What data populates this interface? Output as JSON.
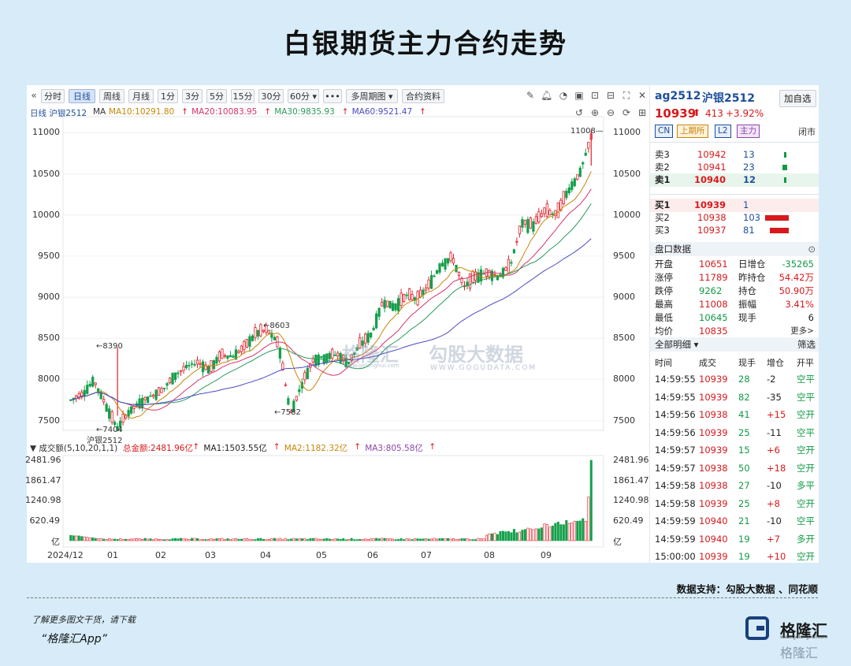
{
  "title": "白银期货主力合约走势",
  "toolbar": {
    "buttons": [
      "分时",
      "日线",
      "周线",
      "月线",
      "1分",
      "3分",
      "5分",
      "15分",
      "30分",
      "60分 ▾",
      "•••",
      "多周期图 ▾",
      "合约资料"
    ],
    "active_index": 1
  },
  "chart_header": {
    "label": "日线 沪银2512",
    "ma_legend": [
      {
        "text": "MA",
        "color": "#333333"
      },
      {
        "text": "MA10:10291.80",
        "color": "#c8860a"
      },
      {
        "text": "MA20:10083.95",
        "color": "#d6336c"
      },
      {
        "text": "MA30:9835.93",
        "color": "#2b9a5a"
      },
      {
        "text": "MA60:9521.47",
        "color": "#4b4bc4"
      }
    ]
  },
  "vol_header": {
    "label": "成交额(5,10,20,1,1)",
    "items": [
      {
        "text": "总金额:2481.96亿",
        "color": "#d7191c"
      },
      {
        "text": "MA1:1503.55亿",
        "color": "#222222"
      },
      {
        "text": "MA2:1182.32亿",
        "color": "#c8860a"
      },
      {
        "text": "MA3:805.58亿",
        "color": "#8e44ad"
      }
    ]
  },
  "price_axis": [
    "11000",
    "10500",
    "10000",
    "9500",
    "9000",
    "8500",
    "8000",
    "7500"
  ],
  "vol_axis": [
    "2481.96",
    "1861.47",
    "1240.98",
    "620.49",
    "亿"
  ],
  "x_axis": [
    "2024/12",
    "01",
    "02",
    "03",
    "04",
    "05",
    "06",
    "07",
    "08",
    "09"
  ],
  "annotations": {
    "high": "11008",
    "p8390": "8390",
    "p8603": "8603",
    "p7582": "7582",
    "p7404": "7404",
    "contract_tag": "沪银2512"
  },
  "watermark": {
    "brand": "格隆汇",
    "brand_sub": "www.gelonghui.com",
    "partner": "勾股大数据",
    "partner_sub": "WWW.GOGUDATA.COM"
  },
  "quote": {
    "code": "ag2512",
    "name": "沪银2512",
    "add_button": "加自选",
    "price": "10939",
    "arrow": "⬆",
    "change": "413",
    "change_pct": "+3.92%",
    "tags": [
      "CN",
      "上期所",
      "L2",
      "主力"
    ],
    "status": "闭市"
  },
  "order_book": {
    "asks": [
      {
        "label": "卖3",
        "price": "10942",
        "vol": "13"
      },
      {
        "label": "卖2",
        "price": "10941",
        "vol": "23"
      },
      {
        "label": "卖1",
        "price": "10940",
        "vol": "12"
      }
    ],
    "bids": [
      {
        "label": "买1",
        "price": "10939",
        "vol": "1"
      },
      {
        "label": "买2",
        "price": "10938",
        "vol": "103"
      },
      {
        "label": "买3",
        "price": "10937",
        "vol": "81"
      }
    ]
  },
  "stats_title": "盘口数据",
  "stats": [
    {
      "k1": "开盘",
      "v1": "10651",
      "k2": "日增仓",
      "v2": "-35265"
    },
    {
      "k1": "涨停",
      "v1": "11789",
      "k2": "昨持仓",
      "v2": "54.42万"
    },
    {
      "k1": "跌停",
      "v1": "9262",
      "k2": "持仓",
      "v2": "50.90万"
    },
    {
      "k1": "最高",
      "v1": "11008",
      "k2": "振幅",
      "v2": "3.41%"
    },
    {
      "k1": "最低",
      "v1": "10645",
      "k2": "现手",
      "v2": "6"
    },
    {
      "k1": "均价",
      "v1": "10835",
      "k2": "",
      "v2": "更多>"
    }
  ],
  "detail_title": "全部明细 ▾",
  "detail_filter": "筛选",
  "detail_headers": [
    "时间",
    "成交",
    "现手",
    "增仓",
    "开平"
  ],
  "trades": [
    {
      "time": "14:59:55",
      "price": "10939",
      "vol": "28",
      "oi": "-2",
      "oc": "空平"
    },
    {
      "time": "14:59:55",
      "price": "10939",
      "vol": "82",
      "oi": "-35",
      "oc": "空平"
    },
    {
      "time": "14:59:56",
      "price": "10938",
      "vol": "41",
      "oi": "+15",
      "oc": "空开"
    },
    {
      "time": "14:59:56",
      "price": "10939",
      "vol": "25",
      "oi": "-11",
      "oc": "空平"
    },
    {
      "time": "14:59:57",
      "price": "10939",
      "vol": "15",
      "oi": "+6",
      "oc": "空开"
    },
    {
      "time": "14:59:57",
      "price": "10938",
      "vol": "50",
      "oi": "+18",
      "oc": "空开"
    },
    {
      "time": "14:59:58",
      "price": "10938",
      "vol": "27",
      "oi": "-10",
      "oc": "多平"
    },
    {
      "time": "14:59:58",
      "price": "10939",
      "vol": "25",
      "oi": "+8",
      "oc": "空开"
    },
    {
      "time": "14:59:59",
      "price": "10940",
      "vol": "21",
      "oi": "-10",
      "oc": "空平"
    },
    {
      "time": "14:59:59",
      "price": "10940",
      "vol": "19",
      "oi": "+7",
      "oc": "多开"
    },
    {
      "time": "15:00:00",
      "price": "10939",
      "vol": "19",
      "oi": "+10",
      "oc": "空开"
    }
  ],
  "footer": {
    "source": "数据支持：勾股大数据 、同花顺",
    "download_note": "了解更多图文干货，请下载",
    "app_name": "“格隆汇App”",
    "logo_text": "格隆汇",
    "logo_sub": "www.gelonghui.com",
    "watermark_text": "格隆汇"
  },
  "chart_data": {
    "type": "candlestick",
    "title": "白银期货主力合约走势",
    "xlabel": "",
    "ylabel": "",
    "x_ticks": [
      "2024/12",
      "01",
      "02",
      "03",
      "04",
      "05",
      "06",
      "07",
      "08",
      "09"
    ],
    "ylim": [
      7400,
      11100
    ],
    "grid": true,
    "anchors": [
      {
        "month": "2024/12",
        "price": 7750
      },
      {
        "month": "12-mid",
        "price": 8000
      },
      {
        "month": "2025/01-early",
        "price": 7404
      },
      {
        "month": "01",
        "price": 7700
      },
      {
        "month": "02",
        "price": 8100
      },
      {
        "month": "03",
        "price": 8300
      },
      {
        "month": "04-early",
        "price": 8603
      },
      {
        "month": "04-mid",
        "price": 7582
      },
      {
        "month": "05",
        "price": 8250
      },
      {
        "month": "06",
        "price": 8900
      },
      {
        "month": "07",
        "price": 9050
      },
      {
        "month": "08",
        "price": 9150
      },
      {
        "month": "09",
        "price": 9900
      },
      {
        "month": "10-mid",
        "price": 10939
      }
    ],
    "high": 11008,
    "low": 7404,
    "last_close": 10939,
    "ma": {
      "MA10": 10291.8,
      "MA20": 10083.95,
      "MA30": 9835.93,
      "MA60": 9521.47
    },
    "turnover_max": 2481.96,
    "turnover_ticks": [
      2481.96,
      1861.47,
      1240.98,
      620.49
    ]
  }
}
